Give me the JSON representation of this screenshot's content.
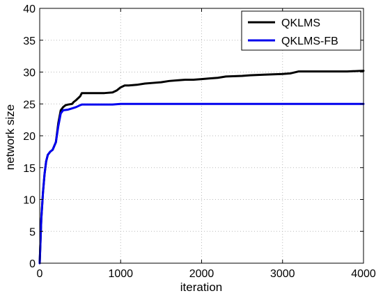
{
  "chart_data": {
    "type": "line",
    "title": "",
    "xlabel": "iteration",
    "ylabel": "network size",
    "xlim": [
      0,
      4000
    ],
    "ylim": [
      0,
      40
    ],
    "xticks": [
      0,
      1000,
      2000,
      3000,
      4000
    ],
    "yticks": [
      0,
      5,
      10,
      15,
      20,
      25,
      30,
      35,
      40
    ],
    "grid": true,
    "legend_position": "top-right",
    "series": [
      {
        "name": "QKLMS",
        "color": "#000000",
        "points": [
          [
            0,
            0
          ],
          [
            20,
            7
          ],
          [
            40,
            11
          ],
          [
            60,
            14
          ],
          [
            80,
            16
          ],
          [
            100,
            17
          ],
          [
            130,
            17.5
          ],
          [
            160,
            17.8
          ],
          [
            200,
            19
          ],
          [
            230,
            22
          ],
          [
            260,
            24
          ],
          [
            290,
            24.5
          ],
          [
            320,
            24.8
          ],
          [
            350,
            24.9
          ],
          [
            400,
            25
          ],
          [
            420,
            25.3
          ],
          [
            450,
            25.6
          ],
          [
            500,
            26.2
          ],
          [
            520,
            26.7
          ],
          [
            600,
            26.7
          ],
          [
            700,
            26.7
          ],
          [
            800,
            26.7
          ],
          [
            900,
            26.8
          ],
          [
            950,
            27.1
          ],
          [
            1000,
            27.6
          ],
          [
            1050,
            27.9
          ],
          [
            1100,
            27.9
          ],
          [
            1200,
            28
          ],
          [
            1300,
            28.2
          ],
          [
            1400,
            28.3
          ],
          [
            1500,
            28.4
          ],
          [
            1600,
            28.6
          ],
          [
            1700,
            28.7
          ],
          [
            1800,
            28.8
          ],
          [
            1900,
            28.8
          ],
          [
            2000,
            28.9
          ],
          [
            2100,
            29
          ],
          [
            2200,
            29.1
          ],
          [
            2300,
            29.3
          ],
          [
            2500,
            29.4
          ],
          [
            2600,
            29.5
          ],
          [
            2800,
            29.6
          ],
          [
            3000,
            29.7
          ],
          [
            3100,
            29.8
          ],
          [
            3200,
            30.1
          ],
          [
            3400,
            30.1
          ],
          [
            3600,
            30.1
          ],
          [
            3800,
            30.1
          ],
          [
            4000,
            30.2
          ]
        ]
      },
      {
        "name": "QKLMS-FB",
        "color": "#0000ee",
        "points": [
          [
            0,
            0
          ],
          [
            20,
            7
          ],
          [
            40,
            11
          ],
          [
            60,
            14
          ],
          [
            80,
            16
          ],
          [
            100,
            17
          ],
          [
            130,
            17.5
          ],
          [
            160,
            17.8
          ],
          [
            200,
            19
          ],
          [
            230,
            21.5
          ],
          [
            260,
            23.5
          ],
          [
            290,
            24
          ],
          [
            350,
            24.1
          ],
          [
            400,
            24.3
          ],
          [
            450,
            24.5
          ],
          [
            500,
            24.8
          ],
          [
            520,
            24.9
          ],
          [
            600,
            24.9
          ],
          [
            800,
            24.9
          ],
          [
            900,
            24.9
          ],
          [
            1000,
            25
          ],
          [
            1100,
            25
          ],
          [
            1500,
            25
          ],
          [
            2000,
            25
          ],
          [
            2500,
            25
          ],
          [
            3000,
            25
          ],
          [
            3500,
            25
          ],
          [
            4000,
            25
          ]
        ]
      }
    ]
  }
}
